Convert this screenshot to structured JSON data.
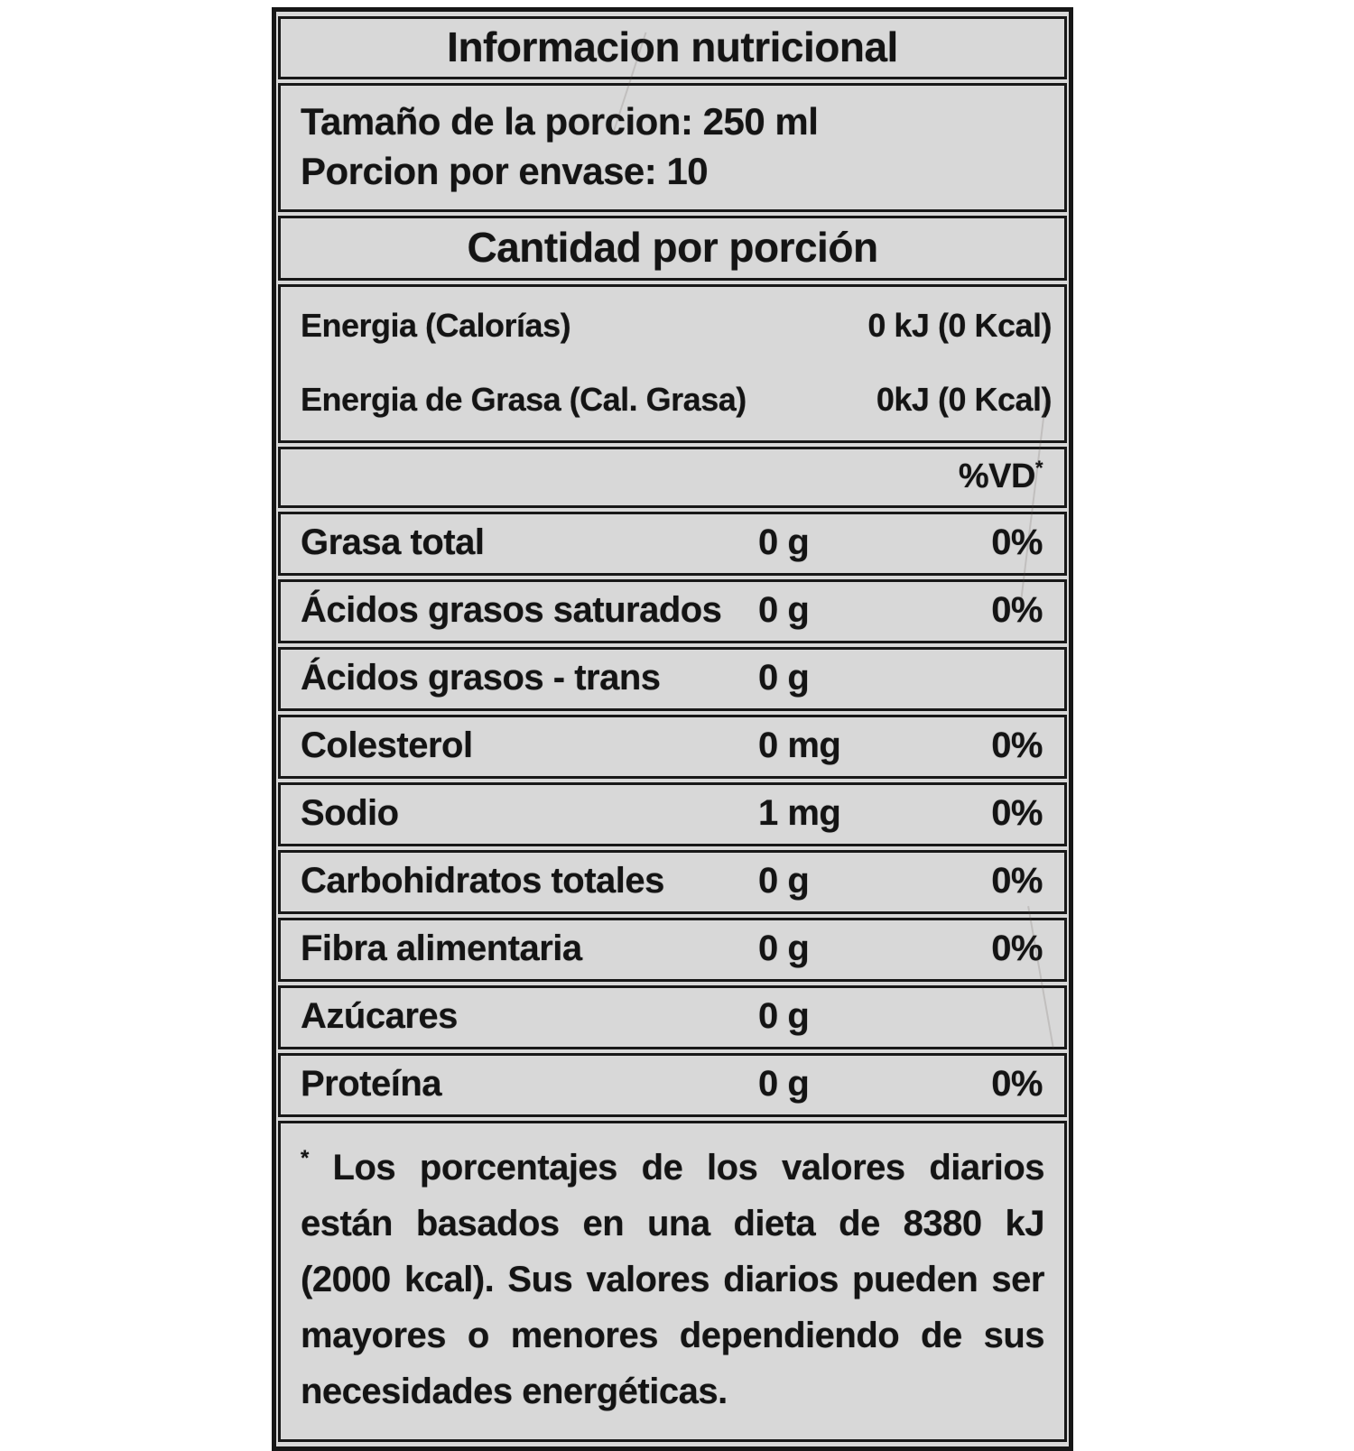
{
  "label": {
    "title": "Informacion nutricional",
    "serving": {
      "size_line": "Tamaño de la porcion: 250 ml",
      "per_container_line": "Porcion por envase: 10"
    },
    "section_header": "Cantidad por porción",
    "energy_rows": [
      {
        "name": "Energia (Calorías)",
        "value": "0 kJ (0 Kcal)"
      },
      {
        "name": "Energia de Grasa (Cal. Grasa)",
        "value": "0kJ (0 Kcal)"
      }
    ],
    "dv_header": {
      "text": "%VD",
      "sup": "*"
    },
    "nutrients": [
      {
        "name": "Grasa total",
        "amount": "0 g",
        "dv": "0%"
      },
      {
        "name": "Ácidos grasos saturados",
        "amount": "0 g",
        "dv": "0%"
      },
      {
        "name": "Ácidos grasos - trans",
        "amount": "0 g",
        "dv": ""
      },
      {
        "name": "Colesterol",
        "amount": "0 mg",
        "dv": "0%"
      },
      {
        "name": "Sodio",
        "amount": "1 mg",
        "dv": "0%"
      },
      {
        "name": "Carbohidratos totales",
        "amount": "0 g",
        "dv": "0%"
      },
      {
        "name": "Fibra alimentaria",
        "amount": "0 g",
        "dv": "0%"
      },
      {
        "name": "Azúcares",
        "amount": "0 g",
        "dv": ""
      },
      {
        "name": "Proteína",
        "amount": "0 g",
        "dv": "0%"
      }
    ],
    "footnote": {
      "marker": "*",
      "text": " Los porcentajes de los valores diarios están basados en una dieta de 8380 kJ (2000 kcal). Sus valores diarios pueden ser mayores o menores dependiendo de sus necesidades energéticas."
    },
    "colors": {
      "paper": "#d8d8d8",
      "ink": "#141414",
      "page_background": "#ffffff"
    }
  }
}
